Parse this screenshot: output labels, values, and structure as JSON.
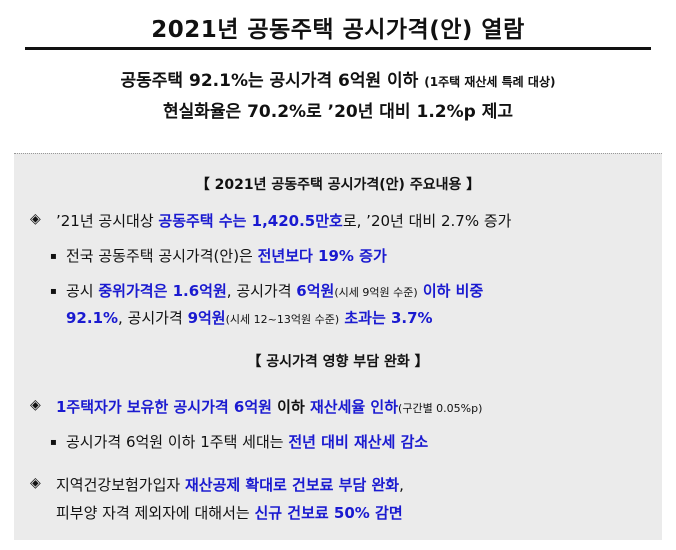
{
  "title": "2021년 공동주택 공시가격(안) 열람",
  "subtitle1_main": "공동주택 92.1%는 공시가격 6억원 이하",
  "subtitle1_small": "(1주택 재산세 특례 대상)",
  "subtitle2": "현실화율은 70.2%로 ’20년 대비 1.2%p 제고",
  "section1_heading": "【 2021년 공동주택 공시가격(안) 주요내용 】",
  "section2_heading": "【 공시가격 영향 부담 완화 】",
  "diamond_marker": "◈",
  "square_marker": "▪",
  "s1_item1": {
    "a": "’21년 공시대상 ",
    "b": "공동주택 수는 1,420.5만호",
    "c": "로, ’20년 대비 2.7% 증가"
  },
  "s1_item2": {
    "a": "전국 공동주택 공시가격(안)은 ",
    "b": "전년보다 19% 증가"
  },
  "s1_item3": {
    "a": "공시 ",
    "b": "중위가격은 1.6억원",
    "c": ", 공시가격 ",
    "d": "6억원",
    "e": "(시세 9억원 수준)",
    "f": " 이하 비중",
    "g": "92.1%",
    "h": ", 공시가격 ",
    "i": "9억원",
    "j": "(시세 12~13억원 수준)",
    "k": " 초과는 3.7%"
  },
  "s2_item1": {
    "a": "1주택자가 보유한 공시가격 6억원",
    "b": " 이하 ",
    "c": "재산세율 인하",
    "d": "(구간별 0.05%p)"
  },
  "s2_item2": {
    "a": "공시가격 6억원 이하 1주택 세대는 ",
    "b": "전년 대비 재산세 감소"
  },
  "s2_item3": {
    "a": "지역건강보험가입자 ",
    "b": "재산공제 확대로 건보료 부담 완화",
    "c": ",",
    "d": "피부양 자격 제외자에 대해서는 ",
    "e": "신규 건보료 50% 감면"
  },
  "colors": {
    "accent_blue": "#1a1ad0",
    "panel_bg": "#ebebeb",
    "text": "#111111"
  }
}
